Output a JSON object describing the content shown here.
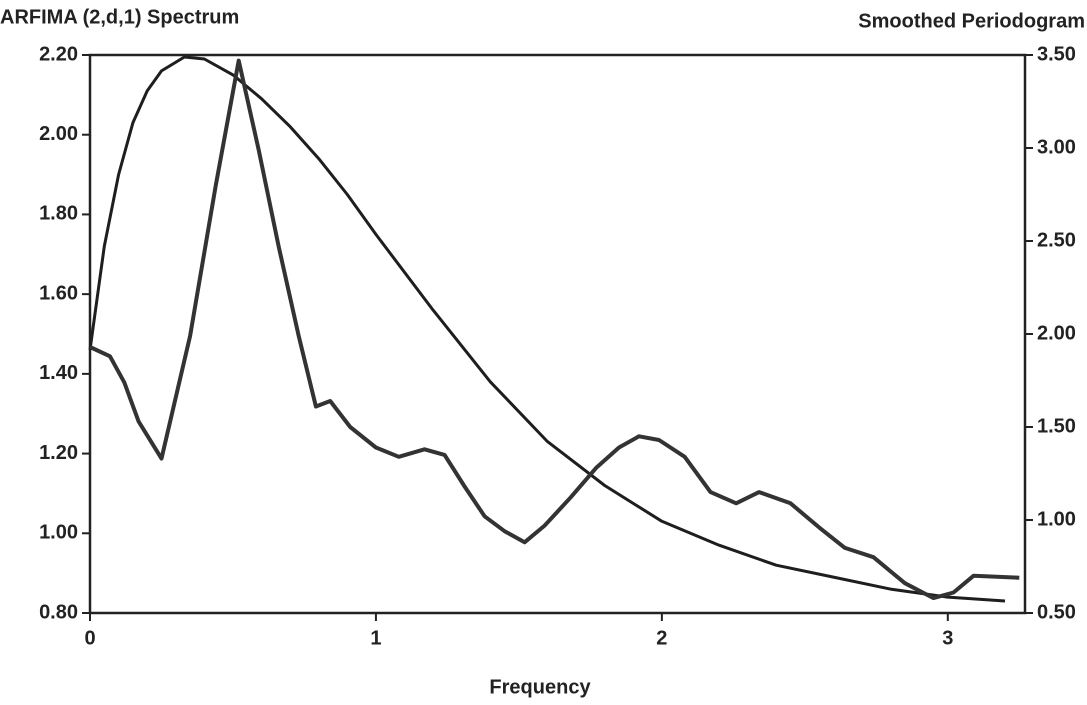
{
  "chart_data": {
    "type": "line",
    "ylabel": "ARFIMA (2,d,1) Spectrum",
    "y2label": "Smoothed Periodogram",
    "xlabel": "Frequency",
    "xlim": [
      0,
      3.27
    ],
    "xticks": [
      0,
      1,
      2,
      3
    ],
    "ylim": [
      0.8,
      2.2
    ],
    "yticks": [
      {
        "value": 0.8,
        "label": "0.80"
      },
      {
        "value": 1.0,
        "label": "1.00"
      },
      {
        "value": 1.2,
        "label": "1.20"
      },
      {
        "value": 1.4,
        "label": "1.40"
      },
      {
        "value": 1.6,
        "label": "1.60"
      },
      {
        "value": 1.8,
        "label": "1.80"
      },
      {
        "value": 2.0,
        "label": "2.00"
      },
      {
        "value": 2.2,
        "label": "2.20"
      }
    ],
    "y2lim": [
      0.5,
      3.5
    ],
    "y2ticks": [
      {
        "value": 0.5,
        "label": "0.50"
      },
      {
        "value": 1.0,
        "label": "1.00"
      },
      {
        "value": 1.5,
        "label": "1.50"
      },
      {
        "value": 2.0,
        "label": "2.00"
      },
      {
        "value": 2.5,
        "label": "2.50"
      },
      {
        "value": 3.0,
        "label": "3.00"
      },
      {
        "value": 3.5,
        "label": "3.50"
      }
    ],
    "series": [
      {
        "color": "#1e1e1e",
        "x": [
          0,
          0.05,
          0.1,
          0.15,
          0.2,
          0.25,
          0.33,
          0.4,
          0.5,
          0.6,
          0.7,
          0.8,
          0.9,
          1.0,
          1.2,
          1.4,
          1.6,
          1.8,
          2.0,
          2.2,
          2.4,
          2.6,
          2.8,
          3.0,
          3.2
        ],
        "values": [
          1.46,
          1.72,
          1.9,
          2.03,
          2.11,
          2.16,
          2.195,
          2.19,
          2.15,
          2.09,
          2.02,
          1.94,
          1.85,
          1.75,
          1.56,
          1.38,
          1.23,
          1.12,
          1.03,
          0.97,
          0.92,
          0.89,
          0.86,
          0.84,
          0.83
        ]
      },
      {
        "color": "#333333",
        "axis": "y2",
        "x": [
          0,
          0.07,
          0.12,
          0.17,
          0.25,
          0.35,
          0.44,
          0.52,
          0.59,
          0.66,
          0.73,
          0.79,
          0.84,
          0.91,
          1.0,
          1.08,
          1.17,
          1.24,
          1.31,
          1.38,
          1.45,
          1.52,
          1.59,
          1.68,
          1.77,
          1.85,
          1.92,
          1.99,
          2.08,
          2.17,
          2.26,
          2.34,
          2.45,
          2.55,
          2.64,
          2.74,
          2.85,
          2.95,
          3.02,
          3.09,
          3.25
        ],
        "values": [
          1.93,
          1.88,
          1.74,
          1.53,
          1.33,
          1.99,
          2.8,
          3.47,
          2.99,
          2.47,
          1.99,
          1.61,
          1.64,
          1.5,
          1.39,
          1.34,
          1.38,
          1.35,
          1.18,
          1.02,
          0.94,
          0.88,
          0.97,
          1.12,
          1.28,
          1.39,
          1.45,
          1.43,
          1.34,
          1.15,
          1.09,
          1.15,
          1.09,
          0.96,
          0.85,
          0.8,
          0.66,
          0.58,
          0.61,
          0.7,
          0.69
        ]
      }
    ]
  }
}
